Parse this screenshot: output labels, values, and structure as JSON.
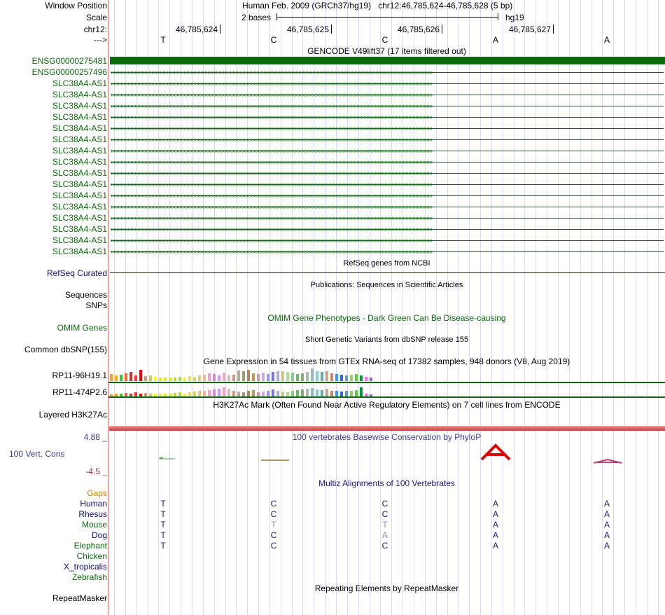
{
  "header": {
    "window_position_label": "Window Position",
    "window_position_text": "Human Feb. 2009 (GRCh37/hg19)   chr12:46,785,624-46,785,628 (5 bp)",
    "scale_label": "Scale",
    "scale_text": "2 bases",
    "scale_assembly": "hg19",
    "chrom_label": "chr12:",
    "strand_label": "--->",
    "ticks": [
      "46,785,624",
      "46,785,625",
      "46,785,626",
      "46,785,627"
    ],
    "bases": [
      "T",
      "C",
      "C",
      "A",
      "A"
    ]
  },
  "gencode": {
    "title": "GENCODE V49lift37 (17 items filtered out)",
    "tracks": [
      {
        "label": "ENSG00000275481",
        "kind": "solid"
      },
      {
        "label": "ENSG00000257496",
        "kind": "left"
      },
      {
        "label": "SLC38A4-AS1",
        "kind": "right"
      },
      {
        "label": "SLC38A4-AS1",
        "kind": "right"
      },
      {
        "label": "SLC38A4-AS1",
        "kind": "right"
      },
      {
        "label": "SLC38A4-AS1",
        "kind": "right"
      },
      {
        "label": "SLC38A4-AS1",
        "kind": "right"
      },
      {
        "label": "SLC38A4-AS1",
        "kind": "right"
      },
      {
        "label": "SLC38A4-AS1",
        "kind": "right"
      },
      {
        "label": "SLC38A4-AS1",
        "kind": "right"
      },
      {
        "label": "SLC38A4-AS1",
        "kind": "right"
      },
      {
        "label": "SLC38A4-AS1",
        "kind": "right"
      },
      {
        "label": "SLC38A4-AS1",
        "kind": "right"
      },
      {
        "label": "SLC38A4-AS1",
        "kind": "right"
      },
      {
        "label": "SLC38A4-AS1",
        "kind": "right"
      },
      {
        "label": "SLC38A4-AS1",
        "kind": "right"
      },
      {
        "label": "SLC38A4-AS1",
        "kind": "right"
      },
      {
        "label": "SLC38A4-AS1",
        "kind": "right"
      }
    ]
  },
  "refseq": {
    "title": "RefSeq genes from NCBI",
    "label": "RefSeq Curated"
  },
  "publications": {
    "title": "Publications: Sequences in Scientific Articles",
    "label": "Sequences"
  },
  "snps_label": "SNPs",
  "omim": {
    "title": "OMIM Gene Phenotypes - Dark Green Can Be Disease-causing",
    "label": "OMIM Genes"
  },
  "dbsnp": {
    "title": "Short Genetic Variants from dbSNP release 155",
    "label": "Common dbSNP(155)"
  },
  "gtex": {
    "title": "Gene Expression in 54 tissues from GTEx RNA-seq of 17382 samples, 948 donors (V8, Aug 2019)",
    "rows": [
      {
        "label": "RP11-96H19.1",
        "values": [
          0.55,
          0.45,
          0.5,
          0.6,
          0.7,
          0.45,
          0.9,
          0.4,
          0.45,
          0.35,
          0.3,
          0.25,
          0.3,
          0.3,
          0.35,
          0.3,
          0.4,
          0.35,
          0.45,
          0.5,
          0.6,
          0.55,
          0.45,
          0.65,
          0.45,
          0.5,
          0.85,
          0.75,
          0.9,
          0.6,
          0.55,
          0.65,
          0.55,
          0.7,
          0.8,
          0.75,
          0.7,
          0.65,
          0.55,
          0.6,
          0.7,
          1.0,
          0.75,
          0.7,
          0.75,
          0.6,
          0.55,
          0.5,
          0.45,
          0.5,
          0.55,
          0.45,
          0.35,
          0.25
        ]
      },
      {
        "label": "RP11-474P2.6",
        "values": [
          0.2,
          0.25,
          0.3,
          0.35,
          0.3,
          0.4,
          0.3,
          0.35,
          0.3,
          0.25,
          0.2,
          0.25,
          0.3,
          0.35,
          0.4,
          0.3,
          0.45,
          0.5,
          0.55,
          0.6,
          0.65,
          0.7,
          0.75,
          0.9,
          0.8,
          0.6,
          0.5,
          0.45,
          0.55,
          0.65,
          0.45,
          0.5,
          0.6,
          0.7,
          0.55,
          0.5,
          0.45,
          0.6,
          0.65,
          0.7,
          0.8,
          0.85,
          0.7,
          0.65,
          0.75,
          0.6,
          0.55,
          0.5,
          0.6,
          0.55,
          0.65,
          0.9,
          0.3,
          0.2
        ]
      }
    ],
    "colors": [
      "#ff9933",
      "#ffaa00",
      "#33cc33",
      "#ff6633",
      "#cc3333",
      "#ff3333",
      "#ff0000",
      "#cc9966",
      "#cccc66",
      "#ffff00",
      "#eeee00",
      "#ddee11",
      "#ccee22",
      "#bbdd33",
      "#aadd44",
      "#ffee33",
      "#eedd66",
      "#ccdd55",
      "#ddcc88",
      "#eebb99",
      "#ff99cc",
      "#dd88cc",
      "#cc99ff",
      "#eeaacc",
      "#ddbbaa",
      "#cc9988",
      "#bbaa99",
      "#aa9977",
      "#aa8866",
      "#bb9955",
      "#cc99aa",
      "#ccaadd",
      "#9999ff",
      "#7777dd",
      "#aaaaee",
      "#cccc88",
      "#aadd99",
      "#88cc88",
      "#66bb66",
      "#88aa77",
      "#aabbaa",
      "#99bbbb",
      "#88cccc",
      "#66aaaa",
      "#ccaa88",
      "#cc8866",
      "#3399ff",
      "#3366cc",
      "#6699cc",
      "#99cc66",
      "#66cc33",
      "#009933",
      "#ff66ff",
      "#9966cc"
    ]
  },
  "h3k27ac": {
    "title": "H3K27Ac Mark (Often Found Near Active Regulatory Elements) on 7 cell lines from ENCODE",
    "label": "Layered H3K27Ac"
  },
  "phylop": {
    "title": "100 vertebrates Basewise Conservation by PhyloP",
    "label": "100 Vert. Cons",
    "max": "4.88 _",
    "min": "-4.5 _"
  },
  "multiz": {
    "title": "Multiz Alignments of 100 Vertebrates",
    "gaps_label": "Gaps",
    "species": [
      {
        "name": "Human",
        "bases": [
          "T",
          "C",
          "C",
          "A",
          "A"
        ],
        "faded": [
          false,
          false,
          false,
          false,
          false
        ]
      },
      {
        "name": "Rhesus",
        "bases": [
          "T",
          "C",
          "C",
          "A",
          "A"
        ],
        "faded": [
          false,
          false,
          false,
          false,
          false
        ]
      },
      {
        "name": "Mouse",
        "bases": [
          "T",
          "T",
          "T",
          "A",
          "A"
        ],
        "faded": [
          false,
          true,
          true,
          false,
          false
        ]
      },
      {
        "name": "Dog",
        "bases": [
          "T",
          "C",
          "A",
          "A",
          "A"
        ],
        "faded": [
          false,
          false,
          true,
          false,
          false
        ]
      },
      {
        "name": "Elephant",
        "bases": [
          "T",
          "C",
          "C",
          "A",
          "A"
        ],
        "faded": [
          false,
          false,
          false,
          false,
          false
        ]
      },
      {
        "name": "Chicken",
        "bases": [
          "",
          "",
          "",
          "",
          ""
        ],
        "faded": [
          false,
          false,
          false,
          false,
          false
        ]
      },
      {
        "name": "X_tropicalis",
        "bases": [
          "",
          "",
          "",
          "",
          ""
        ],
        "faded": [
          false,
          false,
          false,
          false,
          false
        ]
      },
      {
        "name": "Zebrafish",
        "bases": [
          "",
          "",
          "",
          "",
          ""
        ],
        "faded": [
          false,
          false,
          false,
          false,
          false
        ]
      }
    ]
  },
  "repeatmasker": {
    "title": "Repeating Elements by RepeatMasker",
    "label": "RepeatMasker"
  },
  "colors": {
    "gene_green": "#0b6a0b",
    "navy": "#0c0c78",
    "multiz_blue": "#1a1a7a",
    "phylop_label": "#3b3b9e",
    "phylop_red": "#e00000",
    "gaps_orange": "#e08000",
    "divider": "#e07070",
    "grid": "#d8d8f0"
  }
}
